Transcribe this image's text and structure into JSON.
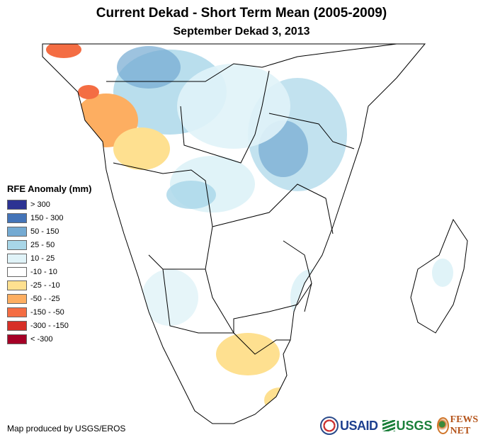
{
  "header": {
    "title": "Current Dekad - Short Term Mean (2005-2009)",
    "subtitle": "September Dekad 3, 2013"
  },
  "legend": {
    "title": "RFE Anomaly (mm)",
    "items": [
      {
        "label": "> 300",
        "color": "#2c3393"
      },
      {
        "label": "150 - 300",
        "color": "#4474b8"
      },
      {
        "label": "50 - 150",
        "color": "#74aad2"
      },
      {
        "label": "25 - 50",
        "color": "#a8d6e8"
      },
      {
        "label": "10 - 25",
        "color": "#e0f3f8"
      },
      {
        "label": "-10 - 10",
        "color": "#ffffff"
      },
      {
        "label": "-25 - -10",
        "color": "#fee090"
      },
      {
        "label": "-50 - -25",
        "color": "#fdae61"
      },
      {
        "label": "-150 - -50",
        "color": "#f46d43"
      },
      {
        "label": "-300 - -150",
        "color": "#d73027"
      },
      {
        "label": "< -300",
        "color": "#a50026"
      }
    ]
  },
  "footer": {
    "credit": "Map produced by USGS/EROS",
    "logos": {
      "usaid": "USAID",
      "usgs": "USGS",
      "fewsnet": "FEWS NET"
    }
  },
  "map": {
    "region": "Central and Southern Africa",
    "colors": {
      "border": "#000000",
      "wet_light": "#e0f3f8",
      "wet_mid": "#a8d6e8",
      "wet_strong": "#74aad2",
      "dry_light": "#fee090",
      "dry_mid": "#fdae61",
      "dry_strong": "#f46d43"
    }
  }
}
